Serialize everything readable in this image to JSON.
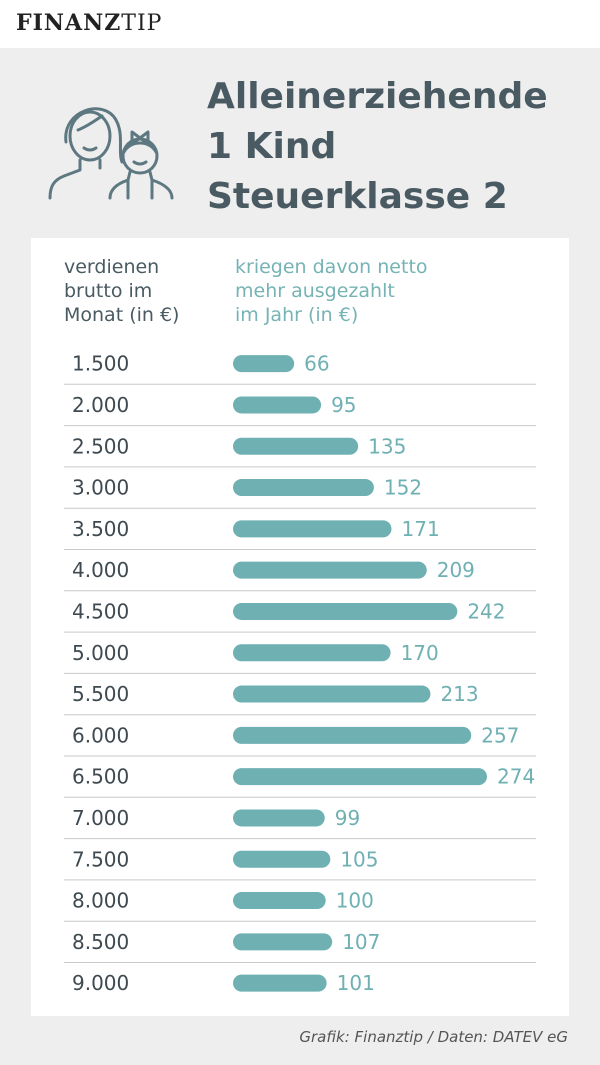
{
  "brand": {
    "logo_bold": "FINANZ",
    "logo_light": "TIP"
  },
  "header": {
    "icon": "parent-child-icon",
    "title_lines": [
      "Alleinerziehende",
      "1 Kind",
      "Steuerklasse 2"
    ]
  },
  "columns": {
    "left_lines": [
      "verdienen",
      "brutto im",
      "Monat (in €)"
    ],
    "right_lines": [
      "kriegen davon netto",
      "mehr ausgezahlt",
      "im Jahr (in €)"
    ]
  },
  "colors": {
    "bar": "#6fb0b3",
    "value_text": "#6fb0b3",
    "category_text": "#3e4a50",
    "title": "#4a5a62",
    "divider": "#c9c9c9"
  },
  "chart_data": {
    "type": "bar",
    "orientation": "horizontal",
    "categories": [
      "1.500",
      "2.000",
      "2.500",
      "3.000",
      "3.500",
      "4.000",
      "4.500",
      "5.000",
      "5.500",
      "6.000",
      "6.500",
      "7.000",
      "7.500",
      "8.000",
      "8.500",
      "9.000"
    ],
    "values": [
      66,
      95,
      135,
      152,
      171,
      209,
      242,
      170,
      213,
      257,
      274,
      99,
      105,
      100,
      107,
      101
    ],
    "value_labels": [
      "66",
      "95",
      "135",
      "152",
      "171",
      "209",
      "242",
      "170",
      "213",
      "257",
      "274",
      "99",
      "105",
      "100",
      "107",
      "101"
    ],
    "xlim": [
      0,
      274
    ],
    "grid": false
  },
  "footer": {
    "source": "Grafik: Finanztip / Daten: DATEV eG"
  }
}
